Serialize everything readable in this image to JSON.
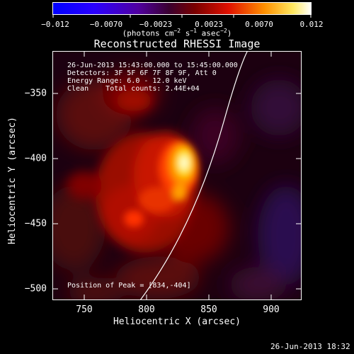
{
  "colorbar": {
    "ticks": [
      "−0.012",
      "−0.0070",
      "−0.0023",
      "0.0023",
      "0.0070",
      "0.012"
    ],
    "units": "(photons cm",
    "units_exp1": "−2",
    "units_mid": " s",
    "units_exp2": "−1",
    "units_tail": " asec",
    "units_exp3": "−2",
    "units_close": ")"
  },
  "plot": {
    "title": "Reconstructed RHESSI Image",
    "xlabel": "Heliocentric X (arcsec)",
    "ylabel": "Heliocentric Y (arcsec)",
    "xticks": [
      "750",
      "800",
      "850",
      "900"
    ],
    "yticks": [
      "−350",
      "−400",
      "−450",
      "−500"
    ]
  },
  "info": {
    "line1": "26-Jun-2013 15:43:00.000 to 15:45:00.000",
    "line2": "Detectors: 3F 5F 6F 7F 8F 9F, Att 0",
    "line3": "Energy Range: 6.0 - 12.0 keV",
    "line4": "Clean    Total counts: 2.44E+04"
  },
  "peak": "Position of Peak = [834,-404]",
  "timestamp": "26-Jun-2013 18:32"
}
